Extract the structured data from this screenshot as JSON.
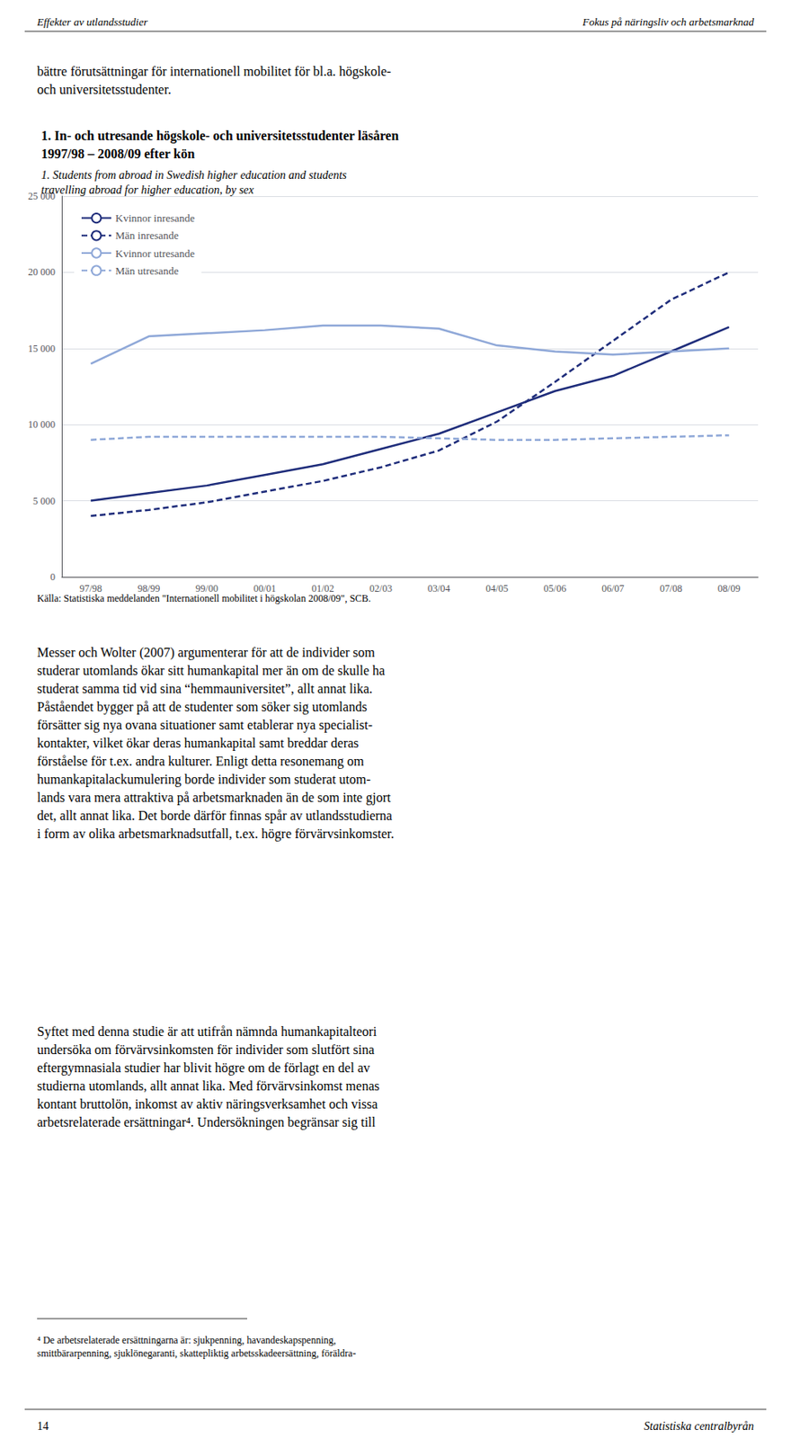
{
  "chart_data": {
    "type": "line",
    "title": "1. In- och utresande högskole- och universitetsstudenter läsåren\n1997/98 – 2008/09 efter kön",
    "subtitle": "1. Students from abroad in Swedish higher education and students\ntravelling abroad for higher education, by sex",
    "annotations": [
      "Effekter av utlandsstudier",
      "Fokus på näringsliv och arbetsmarknad",
      "bättre förutsättningar för internationell mobilitet för bl.a. högskole-\noch universitetsstudenter.",
      "Källa: Statistiska meddelanden \"Internationell mobilitet i högskolan 2008/09\", SCB.",
      "Messer och Wolter (2007) argumenterar för att de individer som\nstuderar utomlands ökar sitt humankapital mer än om de skulle ha\nstuderat samma tid vid sina “hemmauniversitet”, allt annat lika.\nPåståendet bygger på att de studenter som söker sig utomlands\nförsätter sig nya ovana situationer samt etablerar nya specialist-\nkontakter, vilket ökar deras humankapital samt breddar deras\nförståelse för t.ex. andra kulturer. Enligt detta resonemang om\nhumankapitalackumulering borde individer som studerat utom-\nlands vara mera attraktiva på arbetsmarknaden än de som inte gjort\ndet, allt annat lika. Det borde därför finnas spår av utlandsstudierna\ni form av olika arbetsmarknadsutfall, t.ex. högre förvärvsinkomster.",
      "Syftet med denna studie är att utifrån nämnda humankapitalteori\nundersöka om förvärvsinkomsten för individer som slutfört sina\neftergymnasiala studier har blivit högre om de förlagt en del av\nstudierna utomlands, allt annat lika. Med förvärvsinkomst menas\nkontant bruttolön, inkomst av aktiv näringsverksamhet och vissa\narbetsrelaterade ersättningar⁴. Undersökningen begränsar sig till",
      "⁴ De arbetsrelaterade ersättningarna är: sjukpenning, havandeskapspenning,\nsmittbärarpenning, sjuklönegaranti, skattepliktig arbetsskadeersättning, föräldra-",
      "14",
      "Statistiska centralbyrån"
    ],
    "categories": [
      "97/98",
      "98/99",
      "99/00",
      "00/01",
      "01/02",
      "02/03",
      "03/04",
      "04/05",
      "05/06",
      "06/07",
      "07/08",
      "08/09"
    ],
    "series": [
      {
        "name": "Kvinnor inresande",
        "color": "#1F2D7B",
        "line_style": "solid",
        "values": [
          5000,
          5500,
          6000,
          6700,
          7400,
          8400,
          9400,
          10800,
          12200,
          13200,
          14800,
          16400
        ]
      },
      {
        "name": "Män inresande",
        "color": "#1F2D7B",
        "line_style": "dashed",
        "values": [
          4000,
          4400,
          4900,
          5600,
          6300,
          7200,
          8300,
          10200,
          12800,
          15500,
          18200,
          20000
        ]
      },
      {
        "name": "Kvinnor utresande",
        "color": "#8FA8D8",
        "line_style": "solid",
        "values": [
          14000,
          15800,
          16000,
          16200,
          16500,
          16500,
          16300,
          15200,
          14800,
          14600,
          14800,
          15000
        ]
      },
      {
        "name": "Män utresande",
        "color": "#8FA8D8",
        "line_style": "dashed",
        "values": [
          9000,
          9200,
          9200,
          9200,
          9200,
          9200,
          9100,
          9000,
          9000,
          9100,
          9200,
          9300
        ]
      }
    ],
    "ylim": [
      0,
      25000
    ],
    "yticks": [
      0,
      {
        "value": 5000,
        "label": "5 000"
      },
      {
        "value": 10000,
        "label": "10 000"
      },
      {
        "value": 15000,
        "label": "15 000"
      },
      {
        "value": 20000,
        "label": "20 000"
      },
      {
        "value": 25000,
        "label": "25 000"
      }
    ],
    "grid": true,
    "legend": "upper left"
  }
}
